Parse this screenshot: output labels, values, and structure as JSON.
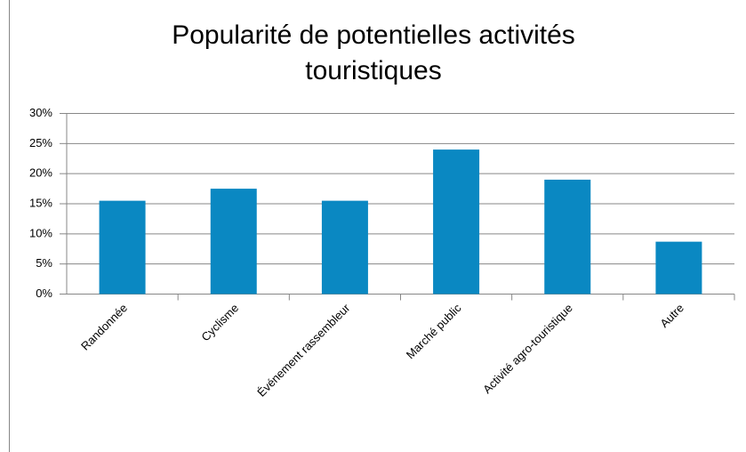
{
  "chart_data": {
    "type": "bar",
    "title": "Popularité de potentielles activités touristiques",
    "categories": [
      "Randonnée",
      "Cyclisme",
      "Événement rassembleur",
      "Marché public",
      "Activité agro-touristique",
      "Autre"
    ],
    "values": [
      15.5,
      17.5,
      15.5,
      24,
      19,
      8.7
    ],
    "color": "#0a88c2",
    "ylim": [
      0,
      30
    ],
    "yticks": [
      {
        "value": 0,
        "label": "0%"
      },
      {
        "value": 5,
        "label": "5%"
      },
      {
        "value": 10,
        "label": "10%"
      },
      {
        "value": 15,
        "label": "15%"
      },
      {
        "value": 20,
        "label": "20%"
      },
      {
        "value": 25,
        "label": "25%"
      },
      {
        "value": 30,
        "label": "30%"
      }
    ],
    "grid": true
  }
}
